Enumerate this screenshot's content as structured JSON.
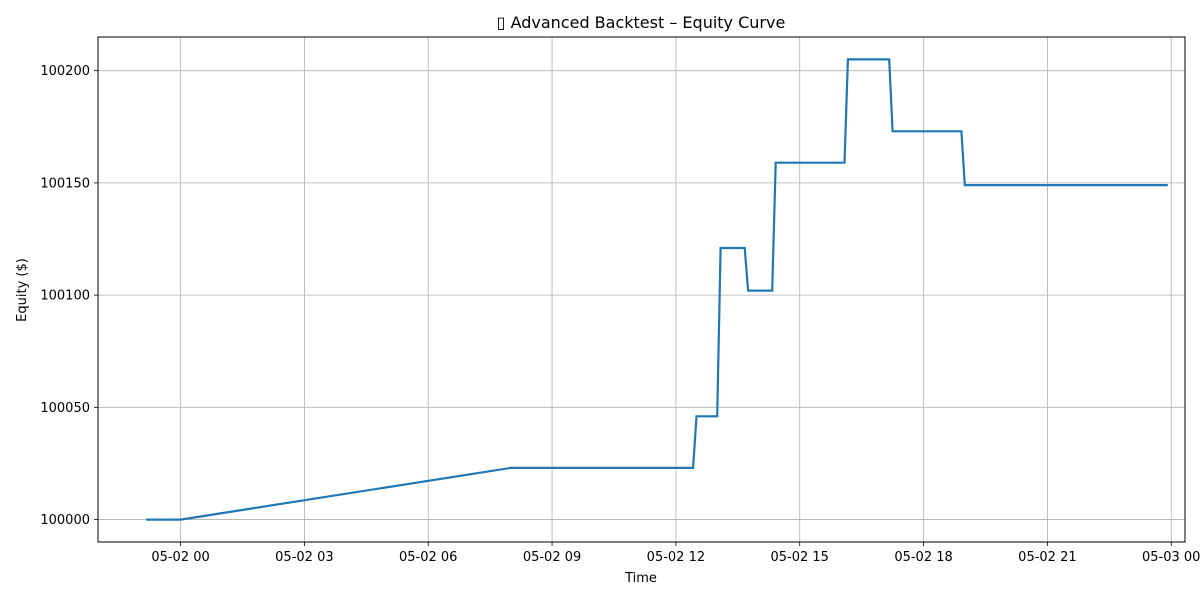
{
  "chart_data": {
    "type": "line",
    "title": "▯ Advanced Backtest – Equity Curve",
    "xlabel": "Time",
    "ylabel": "Equity ($)",
    "x_tick_labels": [
      "05-02 00",
      "05-02 03",
      "05-02 06",
      "05-02 09",
      "05-02 12",
      "05-02 15",
      "05-02 18",
      "05-02 21",
      "05-03 00"
    ],
    "y_tick_labels": [
      "100000",
      "100050",
      "100100",
      "100150",
      "100200"
    ],
    "y_ticks": [
      100000,
      100050,
      100100,
      100150,
      100200
    ],
    "xlim": [
      "05-01 22:00",
      "05-03 00:20"
    ],
    "ylim": [
      99990,
      100215
    ],
    "grid": true,
    "line_color": "#1f77b4",
    "series": [
      {
        "x": [
          "05-01 23:10",
          "05-02 00:00",
          "05-02 08:00",
          "05-02 12:25",
          "05-02 12:30",
          "05-02 13:00",
          "05-02 13:05",
          "05-02 13:40",
          "05-02 13:45",
          "05-02 14:20",
          "05-02 14:25",
          "05-02 16:05",
          "05-02 16:10",
          "05-02 17:10",
          "05-02 17:15",
          "05-02 18:55",
          "05-02 19:00",
          "05-02 23:55"
        ],
        "y": [
          100000,
          100000,
          100023,
          100023,
          100046,
          100046,
          100121,
          100121,
          100102,
          100102,
          100159,
          100159,
          100205,
          100205,
          100173,
          100173,
          100149,
          100149
        ]
      }
    ]
  }
}
